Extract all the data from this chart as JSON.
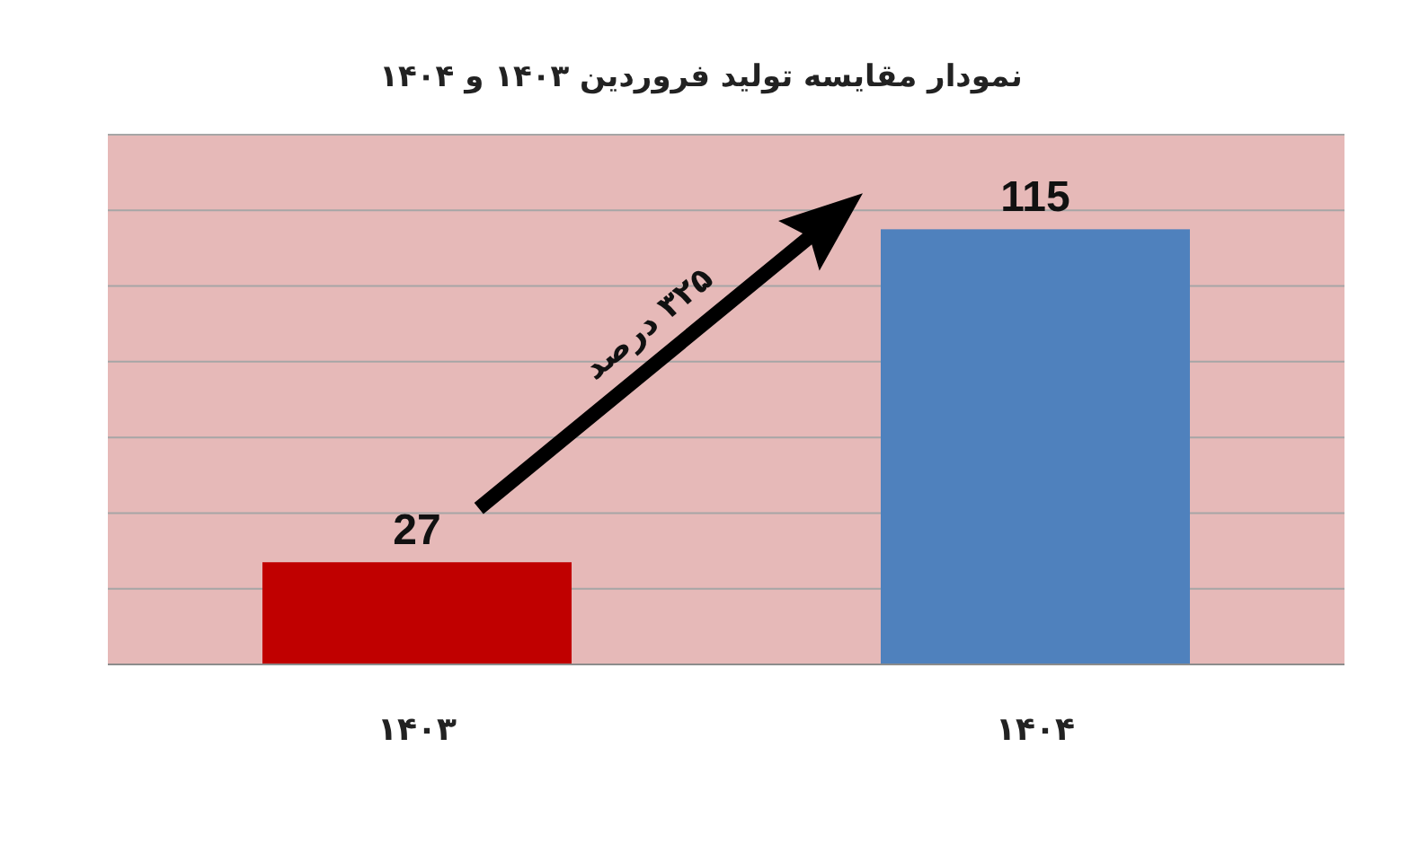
{
  "chart_data": {
    "type": "bar",
    "title": "نمودار  مقایسه تولید فروردین ۱۴۰۳ و ۱۴۰۴",
    "categories": [
      "۱۴۰۳",
      "۱۴۰۴"
    ],
    "values": [
      27,
      115
    ],
    "colors": [
      "#c00000",
      "#4f81bd"
    ],
    "data_labels": true,
    "ylim": [
      0,
      140
    ],
    "yticks": [
      {
        "value": 0,
        "label": null
      },
      {
        "value": 20,
        "label": null
      },
      {
        "value": 40,
        "label": null
      },
      {
        "value": 60,
        "label": null
      },
      {
        "value": 80,
        "label": null
      },
      {
        "value": 100,
        "label": null
      },
      {
        "value": 120,
        "label": null
      },
      {
        "value": 140,
        "label": null
      }
    ],
    "tick_labels": "x",
    "grid": "y",
    "annotations": [
      "۳۲۵ درصد"
    ]
  }
}
